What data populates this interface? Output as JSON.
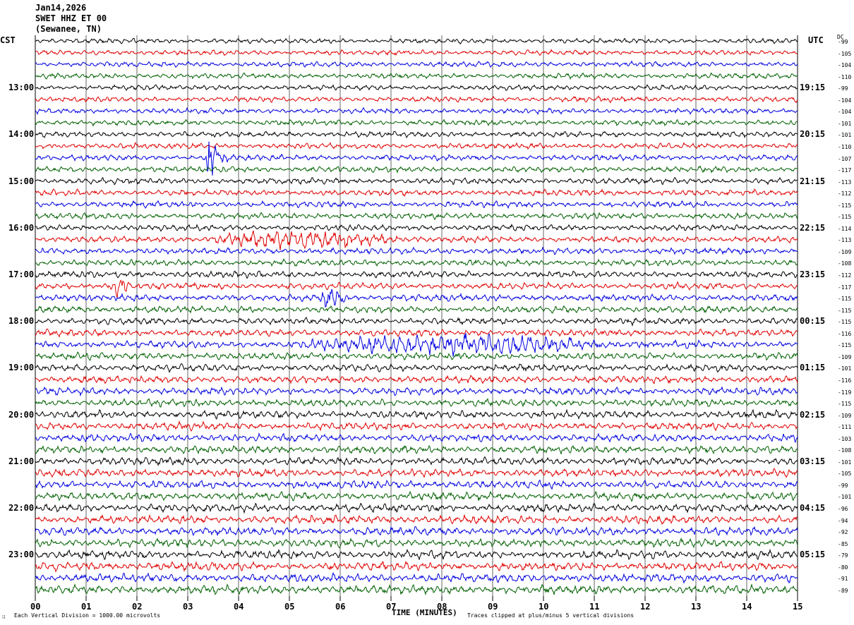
{
  "header": {
    "date": "Jan14,2026",
    "station": "SWET HHZ ET 00",
    "location": "(Sewanee, TN)"
  },
  "left_label": "CST",
  "right_label": "UTC",
  "dc_label": "DC",
  "footer": {
    "scale": "Each Vertical Division = 1000.00 microvolts",
    "clip": "Traces clipped at plus/minus 5 vertical divisions",
    "corner_mark": "∷"
  },
  "chart_data": {
    "type": "line",
    "subtype": "helicorder-seismogram",
    "xlabel": "TIME (MINUTES)",
    "xlim": [
      0,
      15
    ],
    "x_ticks": [
      "00",
      "01",
      "02",
      "03",
      "04",
      "05",
      "06",
      "07",
      "08",
      "09",
      "10",
      "11",
      "12",
      "13",
      "14",
      "15"
    ],
    "grid": "vertical-minute-lines",
    "row_count": 48,
    "row_minutes": 15,
    "trace_colors": [
      "#000000",
      "#e00000",
      "#0000e0",
      "#006000"
    ],
    "left_hour_labels": [
      "13:00",
      "14:00",
      "15:00",
      "16:00",
      "17:00",
      "18:00",
      "19:00",
      "20:00",
      "21:00",
      "22:00",
      "23:00"
    ],
    "right_hour_labels": [
      "19:15",
      "20:15",
      "21:15",
      "22:15",
      "23:15",
      "00:15",
      "01:15",
      "02:15",
      "03:15",
      "04:15",
      "05:15"
    ],
    "hour_label_first_row": 4,
    "hour_label_every_rows": 4,
    "dc_offsets": [
      -99,
      -105,
      -104,
      -110,
      -99,
      -104,
      -104,
      -101,
      -101,
      -110,
      -107,
      -117,
      -113,
      -112,
      -115,
      -115,
      -114,
      -113,
      -109,
      -108,
      -112,
      -117,
      -115,
      -115,
      -115,
      -116,
      -115,
      -109,
      -101,
      -116,
      -119,
      -115,
      -109,
      -111,
      -103,
      -108,
      -101,
      -105,
      -99,
      -101,
      -96,
      -94,
      -92,
      -85,
      -79,
      -80,
      -91,
      -89
    ],
    "events": [
      {
        "row": 10,
        "minute_start": 3.35,
        "minute_end": 4.0,
        "amplitude": "large"
      },
      {
        "row": 17,
        "minute_start": 3.3,
        "minute_end": 7.3,
        "amplitude": "moderate"
      },
      {
        "row": 21,
        "minute_start": 1.4,
        "minute_end": 1.9,
        "amplitude": "moderate"
      },
      {
        "row": 22,
        "minute_start": 5.5,
        "minute_end": 6.2,
        "amplitude": "moderate"
      },
      {
        "row": 26,
        "minute_start": 5.0,
        "minute_end": 11.5,
        "amplitude": "moderate"
      }
    ]
  }
}
